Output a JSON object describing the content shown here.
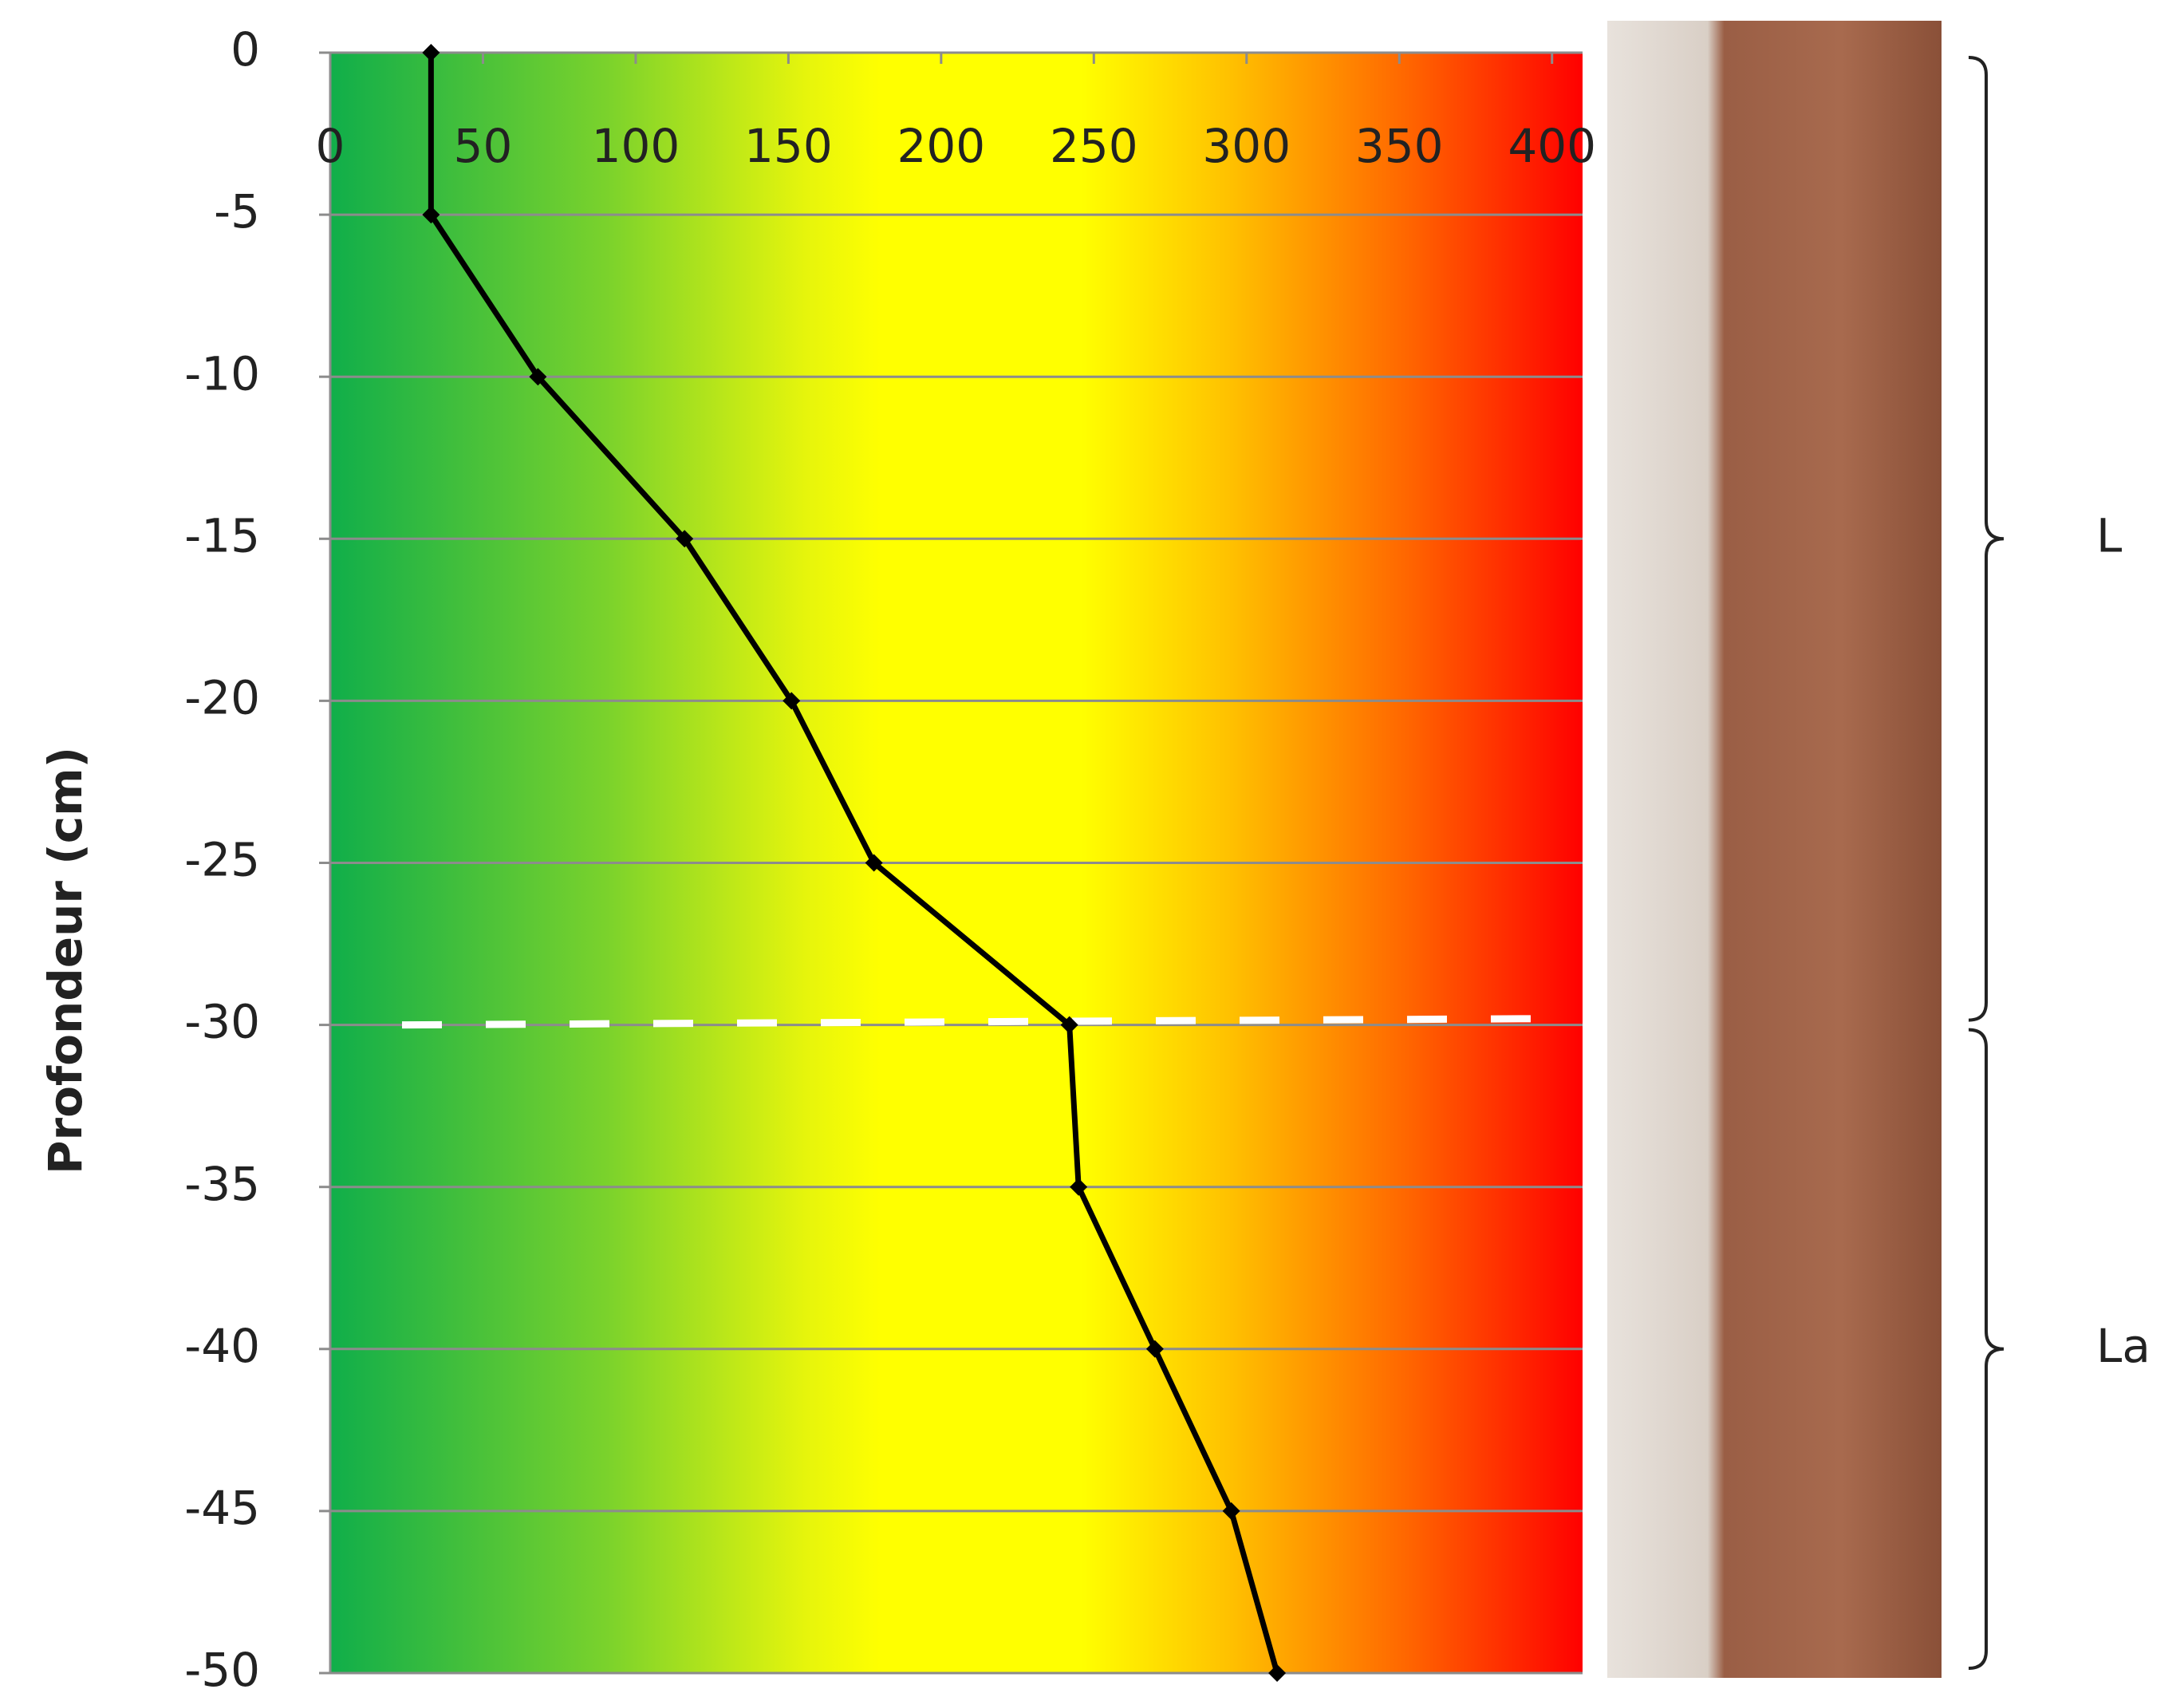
{
  "chart_data": {
    "type": "line",
    "y_label": "Profondeur (cm)",
    "x_position": "top",
    "xlim": [
      0,
      410
    ],
    "xticks": [
      0,
      50,
      100,
      150,
      200,
      250,
      300,
      350,
      400
    ],
    "ylim": [
      -50,
      0
    ],
    "yticks": [
      0,
      -5,
      -10,
      -15,
      -20,
      -25,
      -30,
      -35,
      -40,
      -45,
      -50
    ],
    "grid": true,
    "series": [
      {
        "color": "#000000",
        "y": [
          0,
          -5,
          -10,
          -15,
          -20,
          -25,
          -30,
          -35,
          -40,
          -45,
          -50
        ],
        "values": [
          33,
          33,
          68,
          116,
          151,
          178,
          242,
          245,
          270,
          295,
          310
        ]
      }
    ],
    "annotations": [
      {
        "text": "L",
        "from": 0,
        "to": -30
      },
      {
        "text": "La",
        "from": -30,
        "to": -50
      }
    ]
  }
}
